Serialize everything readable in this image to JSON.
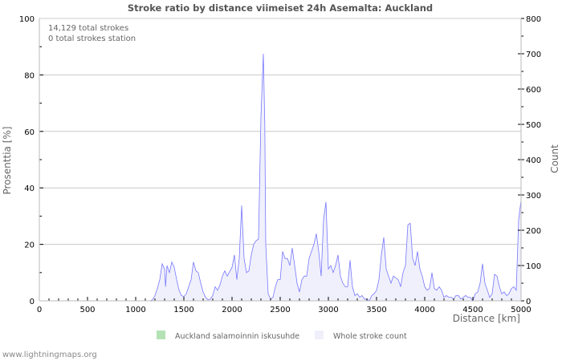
{
  "chart_data": {
    "type": "area",
    "title": "Stroke ratio by distance viimeiset 24h Asemalta: Auckland",
    "annotations": [
      "14,129 total strokes",
      "0 total strokes station"
    ],
    "xlabel": "Distance   [km]",
    "ylabel_left": "Prosenttia   [%]",
    "ylabel_right": "Count",
    "xlim": [
      0,
      5000
    ],
    "ylim_left": [
      0,
      100
    ],
    "ylim_right": [
      0,
      800
    ],
    "x_ticks": [
      "0",
      "500",
      "1000",
      "1500",
      "2000",
      "2500",
      "3000",
      "3500",
      "4000",
      "4500",
      "5000"
    ],
    "y_left_ticks": [
      "0",
      "20",
      "40",
      "60",
      "80",
      "100"
    ],
    "y_right_ticks": [
      "0",
      "100",
      "200",
      "300",
      "400",
      "500",
      "600",
      "700",
      "800"
    ],
    "grid": true,
    "legend_position": "bottom",
    "series": [
      {
        "name": "Auckland salamoinnin iskusuhde",
        "axis": "left",
        "color": "#b5e2b5",
        "x": [
          0,
          5000
        ],
        "values": [
          0,
          0
        ]
      },
      {
        "name": "Whole stroke count",
        "axis": "right",
        "color": "#7777ff",
        "fill": "#f0f0fc",
        "x": [
          0,
          1150,
          1175,
          1200,
          1225,
          1250,
          1275,
          1300,
          1310,
          1325,
          1350,
          1375,
          1400,
          1425,
          1450,
          1475,
          1500,
          1525,
          1550,
          1575,
          1600,
          1625,
          1650,
          1675,
          1700,
          1725,
          1750,
          1775,
          1800,
          1825,
          1850,
          1875,
          1900,
          1925,
          1950,
          2000,
          2025,
          2050,
          2075,
          2100,
          2125,
          2150,
          2175,
          2200,
          2225,
          2250,
          2275,
          2300,
          2325,
          2340,
          2350,
          2375,
          2400,
          2425,
          2450,
          2475,
          2500,
          2525,
          2550,
          2575,
          2600,
          2625,
          2650,
          2675,
          2700,
          2725,
          2750,
          2775,
          2800,
          2850,
          2875,
          2900,
          2925,
          2950,
          2975,
          3000,
          3025,
          3050,
          3075,
          3100,
          3125,
          3150,
          3175,
          3200,
          3225,
          3250,
          3275,
          3300,
          3325,
          3350,
          3375,
          3400,
          3425,
          3450,
          3475,
          3500,
          3525,
          3550,
          3575,
          3600,
          3625,
          3650,
          3675,
          3700,
          3725,
          3750,
          3775,
          3800,
          3825,
          3850,
          3875,
          3900,
          3925,
          3950,
          3975,
          4000,
          4025,
          4050,
          4075,
          4100,
          4125,
          4150,
          4175,
          4200,
          4225,
          4250,
          4275,
          4300,
          4325,
          4350,
          4375,
          4400,
          4425,
          4450,
          4475,
          4500,
          4525,
          4550,
          4575,
          4600,
          4625,
          4650,
          4675,
          4700,
          4725,
          4750,
          4775,
          4800,
          4825,
          4850,
          4875,
          4900,
          4925,
          4950,
          4975,
          5000
        ],
        "values": [
          0,
          0,
          3,
          15,
          35,
          60,
          105,
          90,
          40,
          100,
          80,
          110,
          95,
          60,
          30,
          15,
          12,
          20,
          40,
          60,
          110,
          85,
          80,
          50,
          25,
          10,
          3,
          5,
          15,
          40,
          30,
          45,
          70,
          85,
          70,
          95,
          130,
          60,
          120,
          270,
          120,
          80,
          85,
          130,
          160,
          170,
          175,
          520,
          700,
          500,
          160,
          20,
          5,
          10,
          40,
          60,
          60,
          140,
          120,
          120,
          100,
          150,
          100,
          50,
          25,
          60,
          70,
          70,
          120,
          160,
          190,
          140,
          70,
          230,
          280,
          90,
          100,
          80,
          100,
          130,
          70,
          50,
          40,
          40,
          115,
          40,
          15,
          20,
          10,
          15,
          5,
          5,
          0,
          15,
          20,
          30,
          60,
          130,
          180,
          90,
          70,
          50,
          70,
          65,
          60,
          40,
          80,
          100,
          215,
          220,
          120,
          100,
          140,
          90,
          70,
          40,
          30,
          35,
          80,
          35,
          30,
          40,
          30,
          10,
          15,
          10,
          10,
          5,
          15,
          15,
          5,
          10,
          15,
          10,
          10,
          0,
          20,
          25,
          50,
          105,
          50,
          30,
          10,
          20,
          75,
          70,
          40,
          20,
          25,
          15,
          20,
          35,
          40,
          30,
          230,
          285
        ]
      }
    ]
  },
  "credit": "www.lightningmaps.org"
}
